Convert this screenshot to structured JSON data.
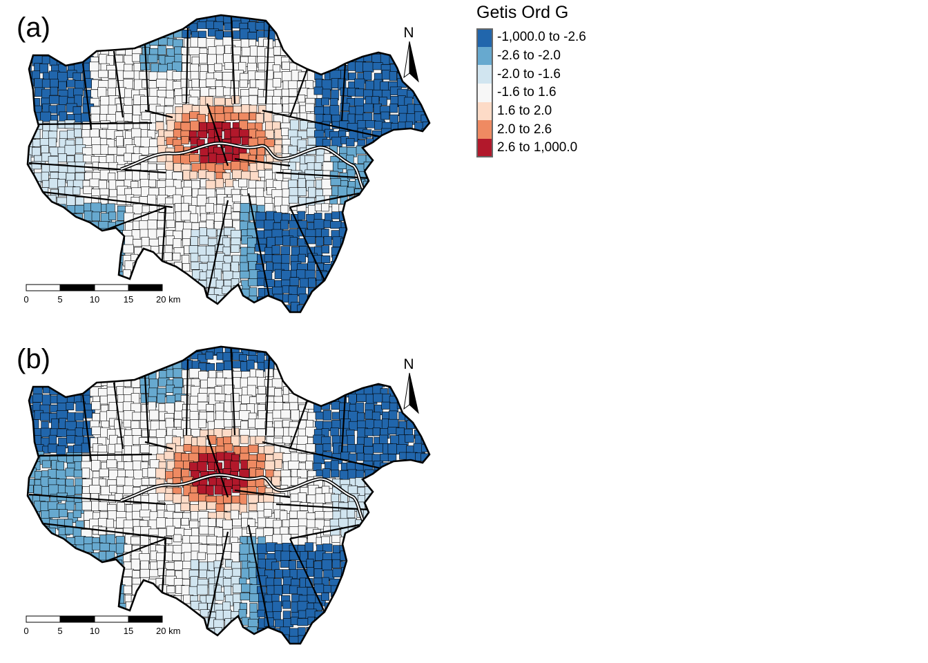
{
  "panels": [
    {
      "label": "(a)",
      "variant": "a"
    },
    {
      "label": "(b)",
      "variant": "b"
    }
  ],
  "legend": {
    "title": "Getis Ord G",
    "classes": [
      {
        "label": "-1,000.0 to -2.6",
        "color": "#2166ac"
      },
      {
        "label": "-2.6 to -2.0",
        "color": "#67a9cf"
      },
      {
        "label": "-2.0 to -1.6",
        "color": "#d1e5f0"
      },
      {
        "label": "-1.6 to 1.6",
        "color": "#f7f7f7"
      },
      {
        "label": "1.6 to 2.0",
        "color": "#fddbc7"
      },
      {
        "label": "2.0 to 2.6",
        "color": "#ef8a62"
      },
      {
        "label": "2.6 to 1,000.0",
        "color": "#b2182b"
      }
    ]
  },
  "scale_bar": {
    "ticks": [
      "0",
      "5",
      "10",
      "15",
      "20 km"
    ]
  },
  "north_arrow": {
    "label": "N"
  }
}
